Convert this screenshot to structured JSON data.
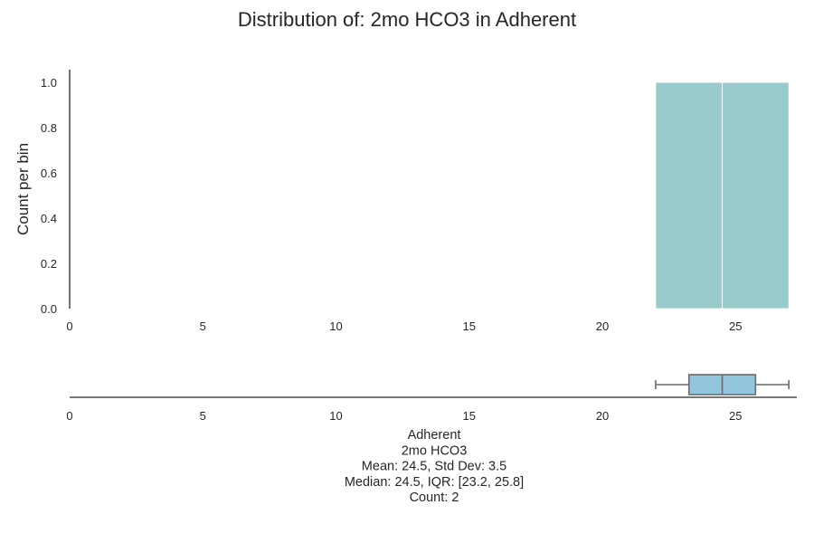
{
  "chart_data": [
    {
      "type": "histogram",
      "title": "Distribution of: 2mo HCO3 in Adherent",
      "ylabel": "Count per bin",
      "xlim": [
        0,
        27.3
      ],
      "ylim": [
        0,
        1.05
      ],
      "x_ticks": [
        0,
        5,
        10,
        15,
        20,
        25
      ],
      "y_ticks": [
        0.0,
        0.2,
        0.4,
        0.6,
        0.8,
        1.0
      ],
      "y_tick_labels": [
        "0.0",
        "0.2",
        "0.4",
        "0.6",
        "0.8",
        "1.0"
      ],
      "bins": [
        {
          "x0": 22.0,
          "x1": 24.5,
          "count": 1
        },
        {
          "x0": 24.5,
          "x1": 27.0,
          "count": 1
        }
      ],
      "bar_color": "#9ACBCC"
    },
    {
      "type": "boxplot",
      "xlim": [
        0,
        27.3
      ],
      "x_ticks": [
        0,
        5,
        10,
        15,
        20,
        25
      ],
      "whisker_low": 22.0,
      "q1": 23.25,
      "median": 24.5,
      "q3": 25.75,
      "whisker_high": 27.0,
      "box_color": "#92C5DE",
      "xlabel_lines": [
        "Adherent",
        "2mo HCO3",
        "Mean: 24.5, Std Dev: 3.5",
        "Median: 24.5, IQR: [23.2, 25.8]",
        "Count: 2"
      ]
    }
  ]
}
